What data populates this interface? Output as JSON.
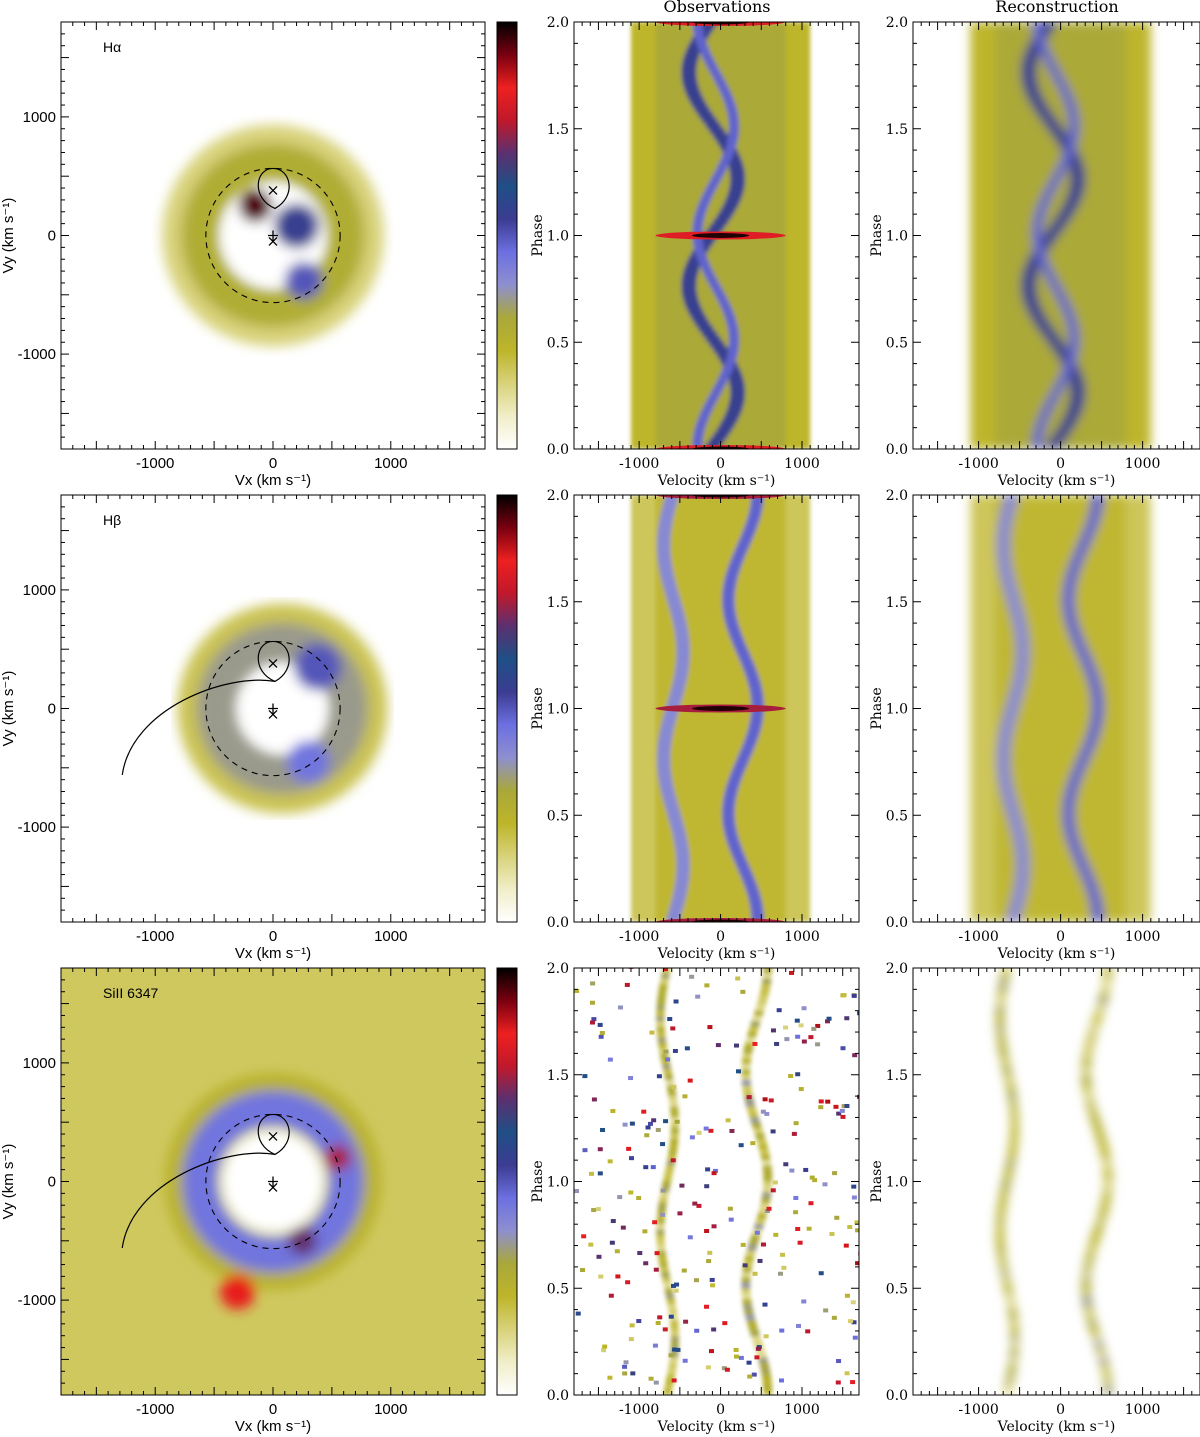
{
  "column_titles": {
    "observations": "Observations",
    "reconstruction": "Reconstruction"
  },
  "colorbar_colors": [
    "#ffffff",
    "#f0eec8",
    "#d8d27a",
    "#bdb52a",
    "#a9a83a",
    "#8e8fd0",
    "#6c6fe0",
    "#3c3c92",
    "#1f4f86",
    "#5a3070",
    "#c0182c",
    "#ee2020",
    "#7a0010",
    "#000000"
  ],
  "chart_data": [
    {
      "type": "heatmap",
      "panel": "doppler-map",
      "line_label": "Hα",
      "xlabel": "Vx (km s⁻¹)",
      "ylabel": "Vy (km s⁻¹)",
      "xlim": [
        -1800,
        1800
      ],
      "ylim": [
        -1800,
        1800
      ],
      "xticks": [
        -1000,
        0,
        1000
      ],
      "yticks": [
        -1000,
        0,
        1000
      ],
      "gas_stream": false,
      "features": [
        {
          "kind": "ring",
          "cx": 0,
          "cy": 0,
          "r": 620,
          "w": 320,
          "level": 0.28
        },
        {
          "kind": "spot",
          "cx": -150,
          "cy": 250,
          "r": 140,
          "level": 0.95
        },
        {
          "kind": "spot",
          "cx": 200,
          "cy": 80,
          "r": 190,
          "level": 0.55
        },
        {
          "kind": "spot",
          "cx": 260,
          "cy": -380,
          "r": 160,
          "level": 0.5
        }
      ]
    },
    {
      "type": "heatmap",
      "panel": "trailed-spectrum-observed",
      "line_label": "Hα",
      "title": "Observations",
      "xlabel": "Velocity (km s⁻¹)",
      "ylabel": "Phase",
      "xlim": [
        -1800,
        1700
      ],
      "ylim": [
        0.0,
        2.0
      ],
      "xticks": [
        -1000,
        0,
        1000
      ],
      "yticks": [
        0.0,
        0.5,
        1.0,
        1.5,
        2.0
      ],
      "eclipse_phases": [
        0.0,
        1.0,
        2.0
      ]
    },
    {
      "type": "heatmap",
      "panel": "trailed-spectrum-reconstructed",
      "line_label": "Hα",
      "title": "Reconstruction",
      "xlabel": "Velocity (km s⁻¹)",
      "ylabel": "Phase",
      "xlim": [
        -1800,
        1700
      ],
      "ylim": [
        0.0,
        2.0
      ],
      "xticks": [
        -1000,
        0,
        1000
      ],
      "yticks": [
        0.0,
        0.5,
        1.0,
        1.5,
        2.0
      ]
    },
    {
      "type": "heatmap",
      "panel": "doppler-map",
      "line_label": "Hβ",
      "xlabel": "Vx (km s⁻¹)",
      "ylabel": "Vy (km s⁻¹)",
      "xlim": [
        -1800,
        1800
      ],
      "ylim": [
        -1800,
        1800
      ],
      "xticks": [
        -1000,
        0,
        1000
      ],
      "yticks": [
        -1000,
        0,
        1000
      ],
      "gas_stream": true,
      "features": [
        {
          "kind": "ring",
          "cx": 80,
          "cy": 0,
          "r": 560,
          "w": 330,
          "level": 0.35
        },
        {
          "kind": "spot",
          "cx": 380,
          "cy": 350,
          "r": 200,
          "level": 0.5
        },
        {
          "kind": "spot",
          "cx": 300,
          "cy": -450,
          "r": 180,
          "level": 0.45
        }
      ]
    },
    {
      "type": "heatmap",
      "panel": "trailed-spectrum-observed",
      "line_label": "Hβ",
      "xlabel": "Velocity (km s⁻¹)",
      "ylabel": "Phase",
      "xlim": [
        -1800,
        1700
      ],
      "ylim": [
        0.0,
        2.0
      ],
      "xticks": [
        -1000,
        0,
        1000
      ],
      "yticks": [
        0.0,
        0.5,
        1.0,
        1.5,
        2.0
      ],
      "eclipse_phases": [
        0.0,
        1.0,
        2.0
      ]
    },
    {
      "type": "heatmap",
      "panel": "trailed-spectrum-reconstructed",
      "line_label": "Hβ",
      "xlabel": "Velocity (km s⁻¹)",
      "ylabel": "Phase",
      "xlim": [
        -1800,
        1700
      ],
      "ylim": [
        0.0,
        2.0
      ],
      "xticks": [
        -1000,
        0,
        1000
      ],
      "yticks": [
        0.0,
        0.5,
        1.0,
        1.5,
        2.0
      ]
    },
    {
      "type": "heatmap",
      "panel": "doppler-map",
      "line_label": "SiII 6347",
      "xlabel": "Vx (km s⁻¹)",
      "ylabel": "Vy (km s⁻¹)",
      "xlim": [
        -1800,
        1800
      ],
      "ylim": [
        -1800,
        1800
      ],
      "xticks": [
        -1000,
        0,
        1000
      ],
      "yticks": [
        -1000,
        0,
        1000
      ],
      "gas_stream": true,
      "features": [
        {
          "kind": "ring",
          "cx": 0,
          "cy": 0,
          "r": 620,
          "w": 300,
          "level": 0.45
        },
        {
          "kind": "spot",
          "cx": -300,
          "cy": -930,
          "r": 150,
          "level": 0.85
        },
        {
          "kind": "spot",
          "cx": 550,
          "cy": 200,
          "r": 110,
          "level": 0.75
        },
        {
          "kind": "spot",
          "cx": 250,
          "cy": -500,
          "r": 120,
          "level": 0.7
        }
      ]
    },
    {
      "type": "heatmap",
      "panel": "trailed-spectrum-observed",
      "line_label": "SiII 6347",
      "xlabel": "Velocity (km s⁻¹)",
      "ylabel": "Phase",
      "xlim": [
        -1800,
        1700
      ],
      "ylim": [
        0.0,
        2.0
      ],
      "xticks": [
        -1000,
        0,
        1000
      ],
      "yticks": [
        0.0,
        0.5,
        1.0,
        1.5,
        2.0
      ]
    },
    {
      "type": "heatmap",
      "panel": "trailed-spectrum-reconstructed",
      "line_label": "SiII 6347",
      "xlabel": "Velocity (km s⁻¹)",
      "ylabel": "Phase",
      "xlim": [
        -1800,
        1700
      ],
      "ylim": [
        0.0,
        2.0
      ],
      "xticks": [
        -1000,
        0,
        1000
      ],
      "yticks": [
        0.0,
        0.5,
        1.0,
        1.5,
        2.0
      ]
    }
  ]
}
